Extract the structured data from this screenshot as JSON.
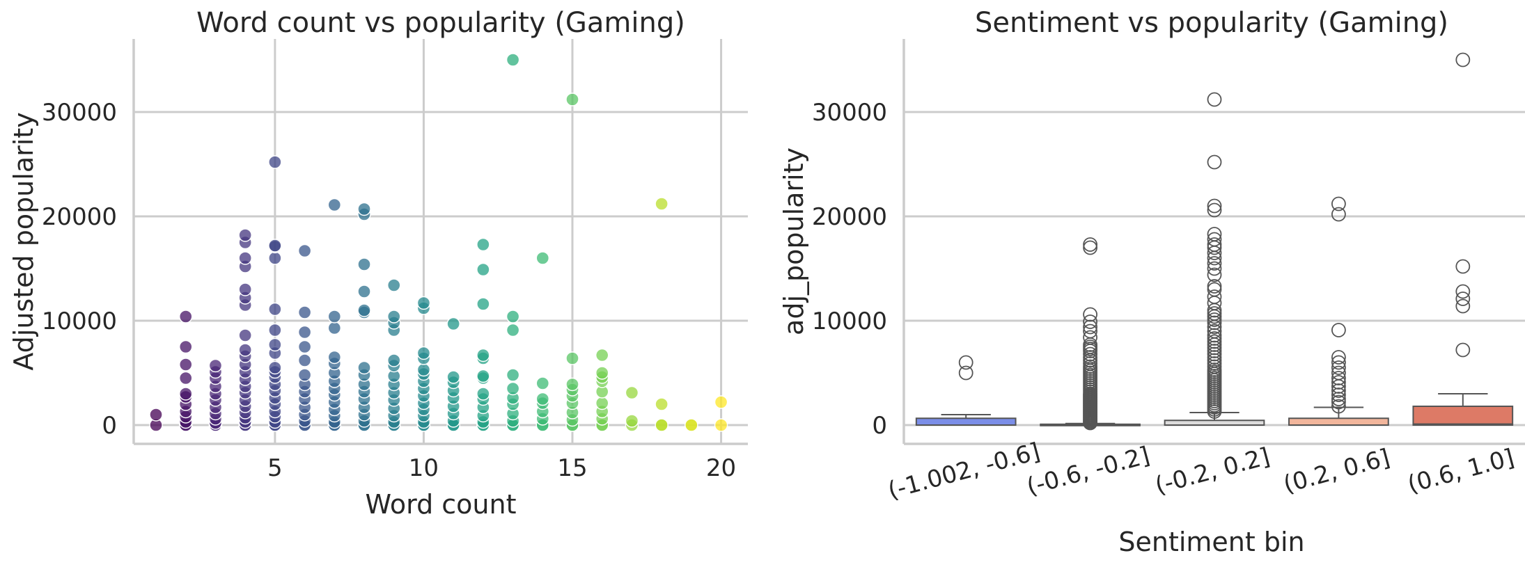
{
  "chart_data": [
    {
      "type": "scatter",
      "title": "Word count vs popularity (Gaming)",
      "xlabel": "Word count",
      "ylabel": "Adjusted popularity",
      "xlim": [
        0.25,
        20.9
      ],
      "ylim": [
        -1800,
        37000
      ],
      "xticks": [
        5,
        10,
        15,
        20
      ],
      "yticks": [
        0,
        10000,
        20000,
        30000
      ],
      "grid": true,
      "colormap": "viridis",
      "points": [
        [
          1,
          0
        ],
        [
          1,
          1000
        ],
        [
          2,
          0
        ],
        [
          2,
          0
        ],
        [
          2,
          300
        ],
        [
          2,
          800
        ],
        [
          2,
          1300
        ],
        [
          2,
          2000
        ],
        [
          2,
          2700
        ],
        [
          2,
          3000
        ],
        [
          2,
          4500
        ],
        [
          2,
          5800
        ],
        [
          2,
          7500
        ],
        [
          2,
          10400
        ],
        [
          3,
          0
        ],
        [
          3,
          0
        ],
        [
          3,
          200
        ],
        [
          3,
          600
        ],
        [
          3,
          1100
        ],
        [
          3,
          1700
        ],
        [
          3,
          2400
        ],
        [
          3,
          3000
        ],
        [
          3,
          3700
        ],
        [
          3,
          4500
        ],
        [
          3,
          5100
        ],
        [
          3,
          5700
        ],
        [
          4,
          0
        ],
        [
          4,
          0
        ],
        [
          4,
          300
        ],
        [
          4,
          700
        ],
        [
          4,
          1200
        ],
        [
          4,
          1800
        ],
        [
          4,
          2400
        ],
        [
          4,
          3100
        ],
        [
          4,
          3700
        ],
        [
          4,
          4400
        ],
        [
          4,
          5100
        ],
        [
          4,
          5800
        ],
        [
          4,
          6600
        ],
        [
          4,
          7200
        ],
        [
          4,
          8600
        ],
        [
          4,
          11500
        ],
        [
          4,
          12200
        ],
        [
          4,
          13000
        ],
        [
          4,
          15200
        ],
        [
          4,
          16000
        ],
        [
          4,
          17500
        ],
        [
          4,
          18200
        ],
        [
          5,
          0
        ],
        [
          5,
          0
        ],
        [
          5,
          300
        ],
        [
          5,
          800
        ],
        [
          5,
          1300
        ],
        [
          5,
          2000
        ],
        [
          5,
          2600
        ],
        [
          5,
          3300
        ],
        [
          5,
          3900
        ],
        [
          5,
          4600
        ],
        [
          5,
          5100
        ],
        [
          5,
          5500
        ],
        [
          5,
          6900
        ],
        [
          5,
          7700
        ],
        [
          5,
          9100
        ],
        [
          5,
          11100
        ],
        [
          5,
          16000
        ],
        [
          5,
          17100
        ],
        [
          5,
          17200
        ],
        [
          5,
          25200
        ],
        [
          6,
          0
        ],
        [
          6,
          0
        ],
        [
          6,
          400
        ],
        [
          6,
          1000
        ],
        [
          6,
          1700
        ],
        [
          6,
          2500
        ],
        [
          6,
          3200
        ],
        [
          6,
          3900
        ],
        [
          6,
          4800
        ],
        [
          6,
          6200
        ],
        [
          6,
          7500
        ],
        [
          6,
          8900
        ],
        [
          6,
          10800
        ],
        [
          6,
          16700
        ],
        [
          7,
          0
        ],
        [
          7,
          0
        ],
        [
          7,
          300
        ],
        [
          7,
          900
        ],
        [
          7,
          1500
        ],
        [
          7,
          2200
        ],
        [
          7,
          2900
        ],
        [
          7,
          3500
        ],
        [
          7,
          4200
        ],
        [
          7,
          5000
        ],
        [
          7,
          5900
        ],
        [
          7,
          6500
        ],
        [
          7,
          9300
        ],
        [
          7,
          10400
        ],
        [
          7,
          21100
        ],
        [
          8,
          0
        ],
        [
          8,
          0
        ],
        [
          8,
          400
        ],
        [
          8,
          1000
        ],
        [
          8,
          1700
        ],
        [
          8,
          2500
        ],
        [
          8,
          3200
        ],
        [
          8,
          3900
        ],
        [
          8,
          4800
        ],
        [
          8,
          5500
        ],
        [
          8,
          10800
        ],
        [
          8,
          11000
        ],
        [
          8,
          12800
        ],
        [
          8,
          15400
        ],
        [
          8,
          20200
        ],
        [
          8,
          20700
        ],
        [
          9,
          0
        ],
        [
          9,
          0
        ],
        [
          9,
          300
        ],
        [
          9,
          900
        ],
        [
          9,
          1600
        ],
        [
          9,
          2400
        ],
        [
          9,
          3100
        ],
        [
          9,
          3900
        ],
        [
          9,
          4700
        ],
        [
          9,
          5700
        ],
        [
          9,
          6200
        ],
        [
          9,
          9100
        ],
        [
          9,
          9800
        ],
        [
          9,
          10400
        ],
        [
          9,
          13400
        ],
        [
          10,
          0
        ],
        [
          10,
          0
        ],
        [
          10,
          300
        ],
        [
          10,
          900
        ],
        [
          10,
          1500
        ],
        [
          10,
          2100
        ],
        [
          10,
          2800
        ],
        [
          10,
          3500
        ],
        [
          10,
          4200
        ],
        [
          10,
          4900
        ],
        [
          10,
          5300
        ],
        [
          10,
          6400
        ],
        [
          10,
          6900
        ],
        [
          10,
          11200
        ],
        [
          10,
          11700
        ],
        [
          11,
          0
        ],
        [
          11,
          0
        ],
        [
          11,
          400
        ],
        [
          11,
          1100
        ],
        [
          11,
          1800
        ],
        [
          11,
          2600
        ],
        [
          11,
          3300
        ],
        [
          11,
          4100
        ],
        [
          11,
          4600
        ],
        [
          11,
          9700
        ],
        [
          12,
          0
        ],
        [
          12,
          0
        ],
        [
          12,
          300
        ],
        [
          12,
          900
        ],
        [
          12,
          1700
        ],
        [
          12,
          2500
        ],
        [
          12,
          3000
        ],
        [
          12,
          4500
        ],
        [
          12,
          4700
        ],
        [
          12,
          6400
        ],
        [
          12,
          6700
        ],
        [
          12,
          11600
        ],
        [
          12,
          14900
        ],
        [
          12,
          17300
        ],
        [
          13,
          0
        ],
        [
          13,
          0
        ],
        [
          13,
          400
        ],
        [
          13,
          1100
        ],
        [
          13,
          2000
        ],
        [
          13,
          2600
        ],
        [
          13,
          3500
        ],
        [
          13,
          4800
        ],
        [
          13,
          9100
        ],
        [
          13,
          10400
        ],
        [
          13,
          35000
        ],
        [
          14,
          0
        ],
        [
          14,
          0
        ],
        [
          14,
          600
        ],
        [
          14,
          1300
        ],
        [
          14,
          2100
        ],
        [
          14,
          2500
        ],
        [
          14,
          4000
        ],
        [
          14,
          16000
        ],
        [
          15,
          0
        ],
        [
          15,
          0
        ],
        [
          15,
          500
        ],
        [
          15,
          1200
        ],
        [
          15,
          2100
        ],
        [
          15,
          2800
        ],
        [
          15,
          3400
        ],
        [
          15,
          3900
        ],
        [
          15,
          6400
        ],
        [
          15,
          31200
        ],
        [
          16,
          0
        ],
        [
          16,
          0
        ],
        [
          16,
          600
        ],
        [
          16,
          1300
        ],
        [
          16,
          2100
        ],
        [
          16,
          3200
        ],
        [
          16,
          4200
        ],
        [
          16,
          4600
        ],
        [
          16,
          5000
        ],
        [
          16,
          6700
        ],
        [
          17,
          0
        ],
        [
          17,
          400
        ],
        [
          17,
          3100
        ],
        [
          18,
          0
        ],
        [
          18,
          0
        ],
        [
          18,
          2000
        ],
        [
          18,
          21200
        ],
        [
          19,
          0
        ],
        [
          19,
          0
        ],
        [
          20,
          0
        ],
        [
          20,
          2200
        ]
      ]
    },
    {
      "type": "box",
      "title": "Sentiment vs popularity (Gaming)",
      "xlabel": "Sentiment bin",
      "ylabel": "adj_popularity",
      "ylim": [
        -1800,
        37000
      ],
      "yticks": [
        0,
        10000,
        20000,
        30000
      ],
      "grid": true,
      "boxes": [
        {
          "label": "(-1.002, -0.6]",
          "q1": 0,
          "median": 0,
          "q3": 650,
          "whisker_low": 0,
          "whisker_high": 1000,
          "color": "#7b8ee8",
          "outliers": [
            5000,
            6000
          ]
        },
        {
          "label": "(-0.6, -0.2]",
          "q1": 0,
          "median": 0,
          "q3": 80,
          "whisker_low": 0,
          "whisker_high": 150,
          "color": "#b6c9f4",
          "outliers": [
            200,
            300,
            400,
            500,
            600,
            700,
            800,
            900,
            1000,
            1100,
            1200,
            1300,
            1400,
            1500,
            1600,
            1700,
            1800,
            1900,
            2000,
            2100,
            2200,
            2300,
            2400,
            2500,
            2600,
            2700,
            2800,
            2900,
            3000,
            3200,
            3400,
            3600,
            3800,
            4000,
            4200,
            4400,
            4600,
            4800,
            5000,
            5200,
            5400,
            5600,
            5900,
            6200,
            6500,
            6800,
            7100,
            7300,
            7500,
            7700,
            8400,
            9000,
            9400,
            9900,
            10600,
            17000,
            17300
          ]
        },
        {
          "label": "(-0.2, 0.2]",
          "q1": 0,
          "median": 0,
          "q3": 450,
          "whisker_low": 0,
          "whisker_high": 1200,
          "color": "#dddcdc",
          "outliers": [
            1300,
            1500,
            1700,
            1900,
            2100,
            2300,
            2500,
            2700,
            2900,
            3100,
            3300,
            3500,
            3700,
            3900,
            4100,
            4300,
            4500,
            4700,
            4900,
            5100,
            5300,
            5600,
            5900,
            6200,
            6500,
            6800,
            7100,
            7400,
            7700,
            8000,
            8300,
            8600,
            9000,
            9400,
            9800,
            10100,
            10400,
            10700,
            11000,
            11700,
            12300,
            13000,
            13300,
            14400,
            15000,
            15500,
            16000,
            16500,
            17000,
            17300,
            17800,
            18300,
            20600,
            21000,
            25200,
            31200
          ]
        },
        {
          "label": "(0.2, 0.6]",
          "q1": 0,
          "median": 0,
          "q3": 650,
          "whisker_low": 0,
          "whisker_high": 1700,
          "color": "#f2b69c",
          "outliers": [
            1800,
            2200,
            2500,
            2900,
            3300,
            3700,
            4100,
            4500,
            5000,
            5500,
            6000,
            6500,
            9100,
            20200,
            21200
          ]
        },
        {
          "label": "(0.6, 1.0]",
          "q1": 0,
          "median": 100,
          "q3": 1800,
          "whisker_low": 0,
          "whisker_high": 3000,
          "color": "#dd7a66",
          "outliers": [
            7200,
            11400,
            12100,
            12800,
            15200,
            35000
          ]
        }
      ]
    }
  ]
}
